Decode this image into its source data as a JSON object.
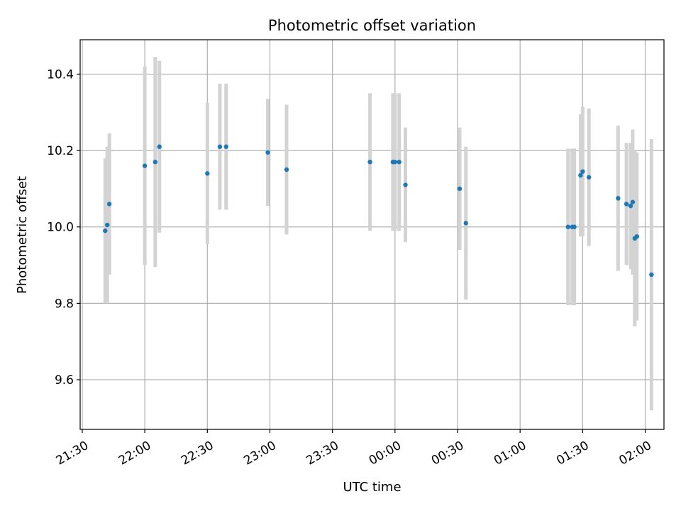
{
  "chart_data": {
    "type": "scatter",
    "title": "Photometric offset variation",
    "xlabel": "UTC time",
    "ylabel": "Photometric offset",
    "x_tick_labels": [
      "21:30",
      "22:00",
      "22:30",
      "23:00",
      "23:30",
      "00:00",
      "00:30",
      "01:00",
      "01:30",
      "02:00"
    ],
    "y_tick_labels": [
      "9.6",
      "9.8",
      "10.0",
      "10.2",
      "10.4"
    ],
    "yticks": [
      9.6,
      9.8,
      10.0,
      10.2,
      10.4
    ],
    "ylim": [
      9.47,
      10.49
    ],
    "xlim": [
      "21:29",
      "02:09"
    ],
    "grid": true,
    "colors": {
      "points": "#1f77b4",
      "errorbars": "#d3d3d3",
      "grid": "#b0b0b0"
    },
    "points": [
      {
        "time": "21:41",
        "y": 9.99,
        "err": 0.19
      },
      {
        "time": "21:42",
        "y": 10.005,
        "err": 0.205
      },
      {
        "time": "21:43",
        "y": 10.06,
        "err": 0.185
      },
      {
        "time": "22:00",
        "y": 10.16,
        "err": 0.26
      },
      {
        "time": "22:05",
        "y": 10.17,
        "err": 0.275
      },
      {
        "time": "22:07",
        "y": 10.21,
        "err": 0.225
      },
      {
        "time": "22:30",
        "y": 10.14,
        "err": 0.185
      },
      {
        "time": "22:36",
        "y": 10.21,
        "err": 0.165
      },
      {
        "time": "22:39",
        "y": 10.21,
        "err": 0.165
      },
      {
        "time": "22:59",
        "y": 10.195,
        "err": 0.14
      },
      {
        "time": "23:08",
        "y": 10.15,
        "err": 0.17
      },
      {
        "time": "23:48",
        "y": 10.17,
        "err": 0.18
      },
      {
        "time": "23:59",
        "y": 10.17,
        "err": 0.18
      },
      {
        "time": "00:00",
        "y": 10.17,
        "err": 0.18
      },
      {
        "time": "00:02",
        "y": 10.17,
        "err": 0.18
      },
      {
        "time": "00:05",
        "y": 10.11,
        "err": 0.15
      },
      {
        "time": "00:31",
        "y": 10.1,
        "err": 0.16
      },
      {
        "time": "00:34",
        "y": 10.01,
        "err": 0.2
      },
      {
        "time": "01:23",
        "y": 10.0,
        "err": 0.205
      },
      {
        "time": "01:25",
        "y": 10.0,
        "err": 0.205
      },
      {
        "time": "01:26",
        "y": 10.0,
        "err": 0.205
      },
      {
        "time": "01:29",
        "y": 10.135,
        "err": 0.16
      },
      {
        "time": "01:30",
        "y": 10.145,
        "err": 0.17
      },
      {
        "time": "01:33",
        "y": 10.13,
        "err": 0.18
      },
      {
        "time": "01:47",
        "y": 10.075,
        "err": 0.19
      },
      {
        "time": "01:51",
        "y": 10.06,
        "err": 0.16
      },
      {
        "time": "01:53",
        "y": 10.055,
        "err": 0.165
      },
      {
        "time": "01:54",
        "y": 10.065,
        "err": 0.19
      },
      {
        "time": "01:55",
        "y": 9.97,
        "err": 0.23
      },
      {
        "time": "01:56",
        "y": 9.975,
        "err": 0.22
      },
      {
        "time": "02:03",
        "y": 9.875,
        "err": 0.355
      }
    ]
  }
}
